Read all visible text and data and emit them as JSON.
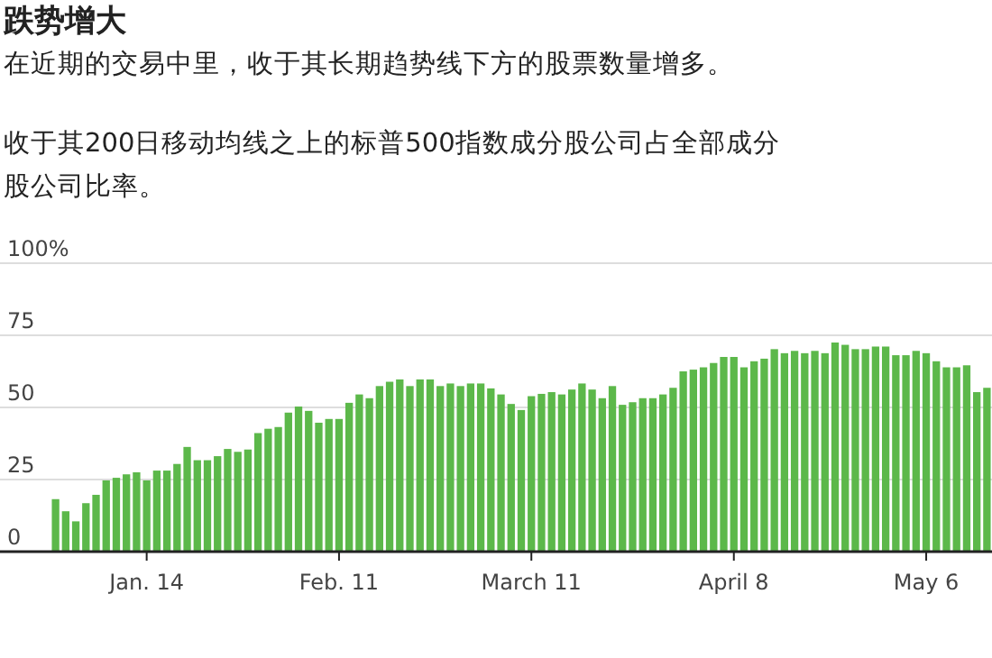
{
  "chart_data": {
    "type": "bar",
    "title": "跌势增大",
    "subtitle": "在近期的交易中里，收于其长期趋势线下方的股票数量增多。",
    "ylabel": "收于其200日移动均线之上的标普500指数成分股公司占全部成分股公司比率。",
    "categories": [
      null,
      null,
      null,
      null,
      null,
      null,
      null,
      null,
      null,
      "Jan. 14",
      null,
      null,
      null,
      null,
      null,
      null,
      null,
      null,
      null,
      null,
      null,
      null,
      null,
      null,
      null,
      null,
      null,
      null,
      "Feb. 11",
      null,
      null,
      null,
      null,
      null,
      null,
      null,
      null,
      null,
      null,
      null,
      null,
      null,
      null,
      null,
      null,
      null,
      null,
      "March 11",
      null,
      null,
      null,
      null,
      null,
      null,
      null,
      null,
      null,
      null,
      null,
      null,
      null,
      null,
      null,
      null,
      null,
      null,
      null,
      "April 8",
      null,
      null,
      null,
      null,
      null,
      null,
      null,
      null,
      null,
      null,
      null,
      null,
      null,
      null,
      null,
      null,
      null,
      null,
      "May 6",
      null,
      null,
      null,
      null,
      null,
      null
    ],
    "values": [
      18.2,
      14,
      10.5,
      16.8,
      19.7,
      24.7,
      25.6,
      26.8,
      27.5,
      24.7,
      28.1,
      28.1,
      30.4,
      36.3,
      31.7,
      31.7,
      33.1,
      35.6,
      34.6,
      35.4,
      41.1,
      42.6,
      43.2,
      48.2,
      50.3,
      48.8,
      44.7,
      46,
      46,
      51.6,
      54.5,
      53.2,
      57.4,
      58.9,
      59.7,
      57.4,
      59.7,
      59.7,
      57.4,
      58.3,
      57.4,
      58.3,
      58.3,
      56.6,
      54.5,
      51.2,
      49.1,
      53.9,
      54.7,
      55.3,
      54.5,
      56.2,
      58.3,
      56.2,
      53.2,
      57.4,
      50.9,
      51.8,
      53.2,
      53.2,
      54.5,
      56.8,
      62.5,
      63.1,
      63.9,
      65.4,
      67.5,
      67.5,
      63.9,
      66,
      66.9,
      70.2,
      68.8,
      69.6,
      68.8,
      69.6,
      68.8,
      72.5,
      71.7,
      70.2,
      70.2,
      71.1,
      71.1,
      68.1,
      68.1,
      69.6,
      68.8,
      66,
      63.9,
      63.9,
      64.6,
      55.3,
      56.8
    ],
    "color": "#5cb84a",
    "ylim": [
      0,
      100
    ],
    "yticks": [
      0,
      25,
      50,
      75,
      {
        "value": 100,
        "label": "100%"
      }
    ],
    "grid": "y"
  }
}
